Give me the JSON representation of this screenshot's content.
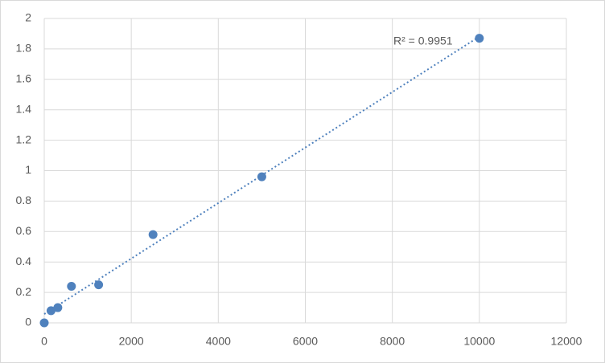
{
  "chart_data": {
    "type": "scatter",
    "x": [
      0,
      156,
      312,
      625,
      1250,
      2500,
      5000,
      10000
    ],
    "values": [
      0,
      0.08,
      0.1,
      0.24,
      0.25,
      0.58,
      0.96,
      1.87
    ],
    "color": "#4f81bd",
    "xlim": [
      0,
      12000
    ],
    "xticks": [
      0,
      2000,
      4000,
      6000,
      8000,
      10000,
      12000
    ],
    "ylim": [
      0,
      2
    ],
    "yticks": [
      0,
      0.2,
      0.4,
      0.6,
      0.8,
      1,
      1.2,
      1.4,
      1.6,
      1.8,
      2
    ],
    "grid": true,
    "trendline": "linear",
    "annotation": "R² = 0.9951"
  }
}
